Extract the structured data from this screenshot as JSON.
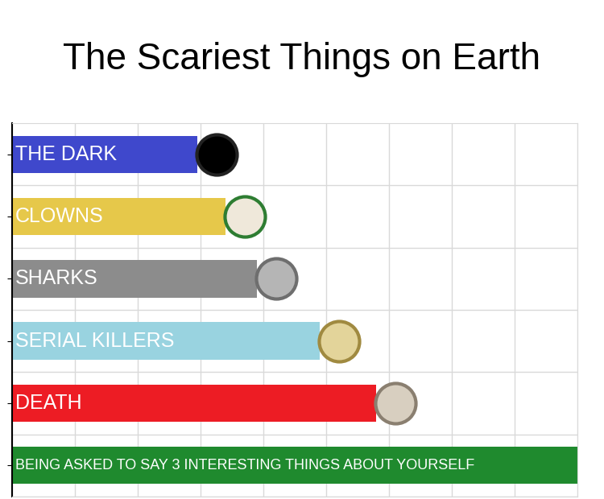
{
  "chart_data": {
    "type": "bar",
    "title": "The Scariest Things on Earth",
    "orientation": "horizontal",
    "categories": [
      "THE DARK",
      "CLOWNS",
      "SHARKS",
      "SERIAL KILLERS",
      "DEATH",
      "BEING ASKED TO SAY 3 INTERESTING THINGS ABOUT YOURSELF"
    ],
    "values": [
      2.95,
      3.4,
      3.9,
      4.9,
      5.8,
      9
    ],
    "colors": [
      "#3f48cc",
      "#e6c84a",
      "#8c8c8c",
      "#99d3e0",
      "#ed1c24",
      "#1f8a2e"
    ],
    "xlim": [
      0,
      9
    ],
    "xticks": [
      0,
      1,
      2,
      3,
      4,
      5,
      6,
      7,
      8,
      9
    ],
    "grid": true,
    "tick_labels": false
  }
}
